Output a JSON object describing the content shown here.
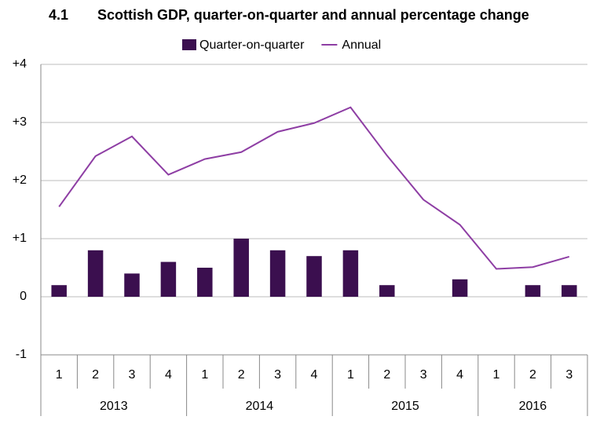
{
  "chart_data": {
    "type": "bar-line",
    "number": "4.1",
    "title": "Scottish GDP, quarter-on-quarter and annual percentage change",
    "category_groups": [
      {
        "name": "2013",
        "categories": [
          "1",
          "2",
          "3",
          "4"
        ]
      },
      {
        "name": "2014",
        "categories": [
          "1",
          "2",
          "3",
          "4"
        ]
      },
      {
        "name": "2015",
        "categories": [
          "1",
          "2",
          "3",
          "4"
        ]
      },
      {
        "name": "2016",
        "categories": [
          "1",
          "2",
          "3"
        ]
      }
    ],
    "series": [
      {
        "name": "Quarter-on-quarter",
        "type": "bar",
        "color": "#3b0f4f",
        "values": [
          0.2,
          0.8,
          0.4,
          0.6,
          0.5,
          1.0,
          0.8,
          0.7,
          0.8,
          0.2,
          0.0,
          0.3,
          0.0,
          0.2,
          0.2
        ]
      },
      {
        "name": "Annual",
        "type": "line",
        "color": "#8e3ea4",
        "values": [
          1.55,
          2.42,
          2.76,
          2.1,
          2.37,
          2.49,
          2.84,
          2.99,
          3.26,
          2.43,
          1.67,
          1.24,
          0.48,
          0.51,
          0.69
        ]
      }
    ],
    "ylim": [
      -1,
      4
    ],
    "yticks": [
      -1,
      0,
      {
        "value": 1,
        "label": "+1"
      },
      {
        "value": 2,
        "label": "+2"
      },
      {
        "value": 3,
        "label": "+3"
      },
      {
        "value": 4,
        "label": "+4"
      }
    ],
    "grid": true
  }
}
